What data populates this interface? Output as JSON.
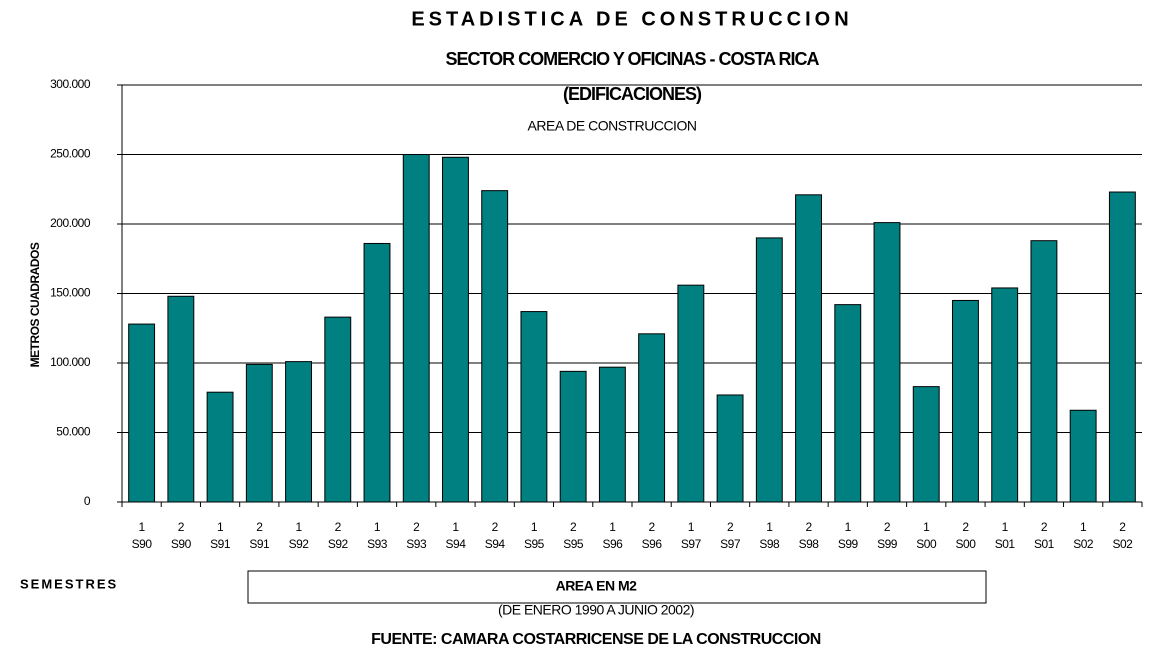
{
  "chart_data": {
    "type": "bar",
    "title": "ESTADISTICA DE CONSTRUCCION",
    "subtitle": "SECTOR COMERCIO Y OFICINAS - COSTA RICA",
    "subtitle2": "(EDIFICACIONES)",
    "subtitle3": "AREA DE CONSTRUCCION",
    "y_label": "METROS CUADRADOS",
    "x_label": "SEMESTRES",
    "note": "(DE ENERO 1990 A JUNIO 2002)",
    "source": "FUENTE:  CAMARA COSTARRICENSE DE LA CONSTRUCCION",
    "categories": [
      "1 S90",
      "2 S90",
      "1 S91",
      "2 S91",
      "1 S92",
      "2 S92",
      "1 S93",
      "2 S93",
      "1 S94",
      "2 S94",
      "1 S95",
      "2 S95",
      "1 S96",
      "2 S96",
      "1 S97",
      "2 S97",
      "1 S98",
      "2 S98",
      "1 S99",
      "2 S99",
      "1 S00",
      "2 S00",
      "1 S01",
      "2 S01",
      "1 S02",
      "2 S02"
    ],
    "series": [
      {
        "name": "AREA EN M2",
        "color": "#008080",
        "values": [
          128000,
          148000,
          79000,
          99000,
          101000,
          133000,
          186000,
          250000,
          248000,
          224000,
          137000,
          94000,
          97000,
          121000,
          156000,
          77000,
          190000,
          221000,
          142000,
          201000,
          83000,
          145000,
          154000,
          188000,
          66000,
          223000
        ]
      }
    ],
    "ylim": [
      0,
      300000
    ],
    "yticks": [
      0,
      {
        "value": 50000,
        "label": "50.000"
      },
      {
        "value": 100000,
        "label": "100.000"
      },
      {
        "value": 150000,
        "label": "150.000"
      },
      {
        "value": 200000,
        "label": "200.000"
      },
      {
        "value": 250000,
        "label": "250.000"
      },
      {
        "value": 300000,
        "label": "300.000"
      }
    ],
    "grid": true
  }
}
